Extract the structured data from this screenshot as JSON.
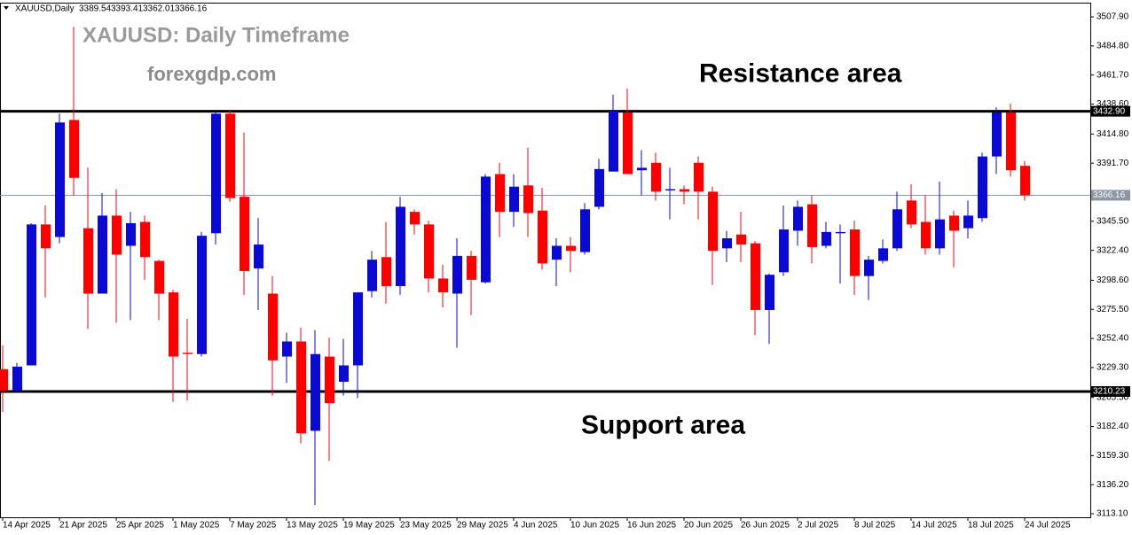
{
  "chart_data": {
    "type": "candlestick",
    "symbol": "XAUUSD,Daily",
    "title": "XAUUSD: Daily Timeframe",
    "watermark": "forexgdp.com",
    "annotations": [
      {
        "text": "Resistance area",
        "value": 3461.7
      },
      {
        "text": "Support area",
        "value": 3182.4
      }
    ],
    "categories": [
      "14 Apr 2025",
      null,
      null,
      null,
      "21 Apr 2025",
      null,
      null,
      null,
      "25 Apr 2025",
      null,
      null,
      null,
      "1 May 2025",
      null,
      null,
      null,
      "7 May 2025",
      null,
      null,
      null,
      "13 May 2025",
      null,
      null,
      null,
      "19 May 2025",
      null,
      null,
      null,
      "23 May 2025",
      null,
      null,
      null,
      "29 May 2025",
      null,
      null,
      null,
      "4 Jun 2025",
      null,
      null,
      null,
      "10 Jun 2025",
      null,
      null,
      null,
      "16 Jun 2025",
      null,
      null,
      null,
      "20 Jun 2025",
      null,
      null,
      null,
      "26 Jun 2025",
      null,
      null,
      null,
      "2 Jul 2025",
      null,
      null,
      null,
      "8 Jul 2025",
      null,
      null,
      null,
      "14 Jul 2025",
      null,
      null,
      null,
      "18 Jul 2025",
      null,
      null,
      null,
      "24 Jul 2025"
    ],
    "open": [
      3228,
      3211,
      3231,
      3343,
      3333,
      3426,
      3340,
      3288,
      3350,
      3326,
      3345,
      3314,
      3289,
      3241,
      3240,
      3336,
      3431,
      3365,
      3308,
      3288,
      3238,
      3250,
      3179,
      3238,
      3218,
      3231,
      3290,
      3317,
      3294,
      3353,
      3343,
      3300,
      3288,
      3318,
      3297,
      3383,
      3353,
      3374,
      3354,
      3315,
      3326,
      3321,
      3357,
      3385,
      3432,
      3386,
      3392,
      3370,
      3371,
      3392,
      3369,
      3324,
      3335,
      3328,
      3275,
      3305,
      3338,
      3359,
      3326,
      3336,
      3339,
      3302,
      3314,
      3324,
      3362,
      3345,
      3324,
      3350,
      3340,
      3348,
      3397,
      3432,
      3389.54
    ],
    "high": [
      3247,
      3233,
      3344,
      3358,
      3431,
      3500,
      3388,
      3368,
      3371,
      3353,
      3350,
      3315,
      3291,
      3268,
      3337,
      3433,
      3434,
      3416,
      3348,
      3302,
      3257,
      3261,
      3259,
      3253,
      3252,
      3289,
      3322,
      3345,
      3365,
      3355,
      3346,
      3311,
      3332,
      3322,
      3383,
      3392,
      3383,
      3404,
      3372,
      3332,
      3333,
      3360,
      3395,
      3446,
      3451,
      3402,
      3400,
      3388,
      3374,
      3397,
      3373,
      3338,
      3353,
      3330,
      3304,
      3358,
      3362,
      3366,
      3345,
      3343,
      3346,
      3318,
      3331,
      3369,
      3375,
      3366,
      3377,
      3354,
      3362,
      3400,
      3436,
      3439,
      3393.41
    ],
    "low": [
      3194,
      3211,
      3231,
      3285,
      3328,
      3366,
      3260,
      3288,
      3265,
      3267,
      3299,
      3267,
      3202,
      3203,
      3238,
      3327,
      3361,
      3287,
      3275,
      3207,
      3217,
      3169,
      3120,
      3155,
      3207,
      3205,
      3285,
      3280,
      3287,
      3335,
      3289,
      3277,
      3245,
      3271,
      3296,
      3333,
      3341,
      3333,
      3307,
      3294,
      3305,
      3319,
      3355,
      3385,
      3383,
      3366,
      3362,
      3347,
      3359,
      3347,
      3295,
      3313,
      3313,
      3255,
      3248,
      3302,
      3326,
      3312,
      3324,
      3296,
      3287,
      3283,
      3312,
      3322,
      3340,
      3319,
      3319,
      3309,
      3332,
      3345,
      3383,
      3381,
      3362.01
    ],
    "close": [
      3211,
      3230,
      3343,
      3324,
      3424,
      3380,
      3288,
      3350,
      3319,
      3344,
      3317,
      3288,
      3238,
      3240,
      3334,
      3431,
      3364,
      3306,
      3327,
      3235,
      3250,
      3177,
      3240,
      3201,
      3231,
      3289,
      3315,
      3294,
      3357,
      3343,
      3300,
      3289,
      3318,
      3299,
      3381,
      3353,
      3373,
      3352,
      3312,
      3326,
      3322,
      3355,
      3387,
      3433,
      3383,
      3388,
      3369,
      3371,
      3369,
      3369,
      3322,
      3332,
      3327,
      3275,
      3303,
      3339,
      3357,
      3325,
      3337,
      3337,
      3302,
      3315,
      3324,
      3355,
      3343,
      3324,
      3347,
      3338,
      3350,
      3397,
      3432,
      3386,
      3366.16
    ],
    "up_color": "#0a0ad2",
    "down_color": "#ff0000",
    "ylim": [
      3110.3,
      3518.5
    ],
    "yticks": [
      {
        "value": 3507.9,
        "label": "3507.90"
      },
      {
        "value": 3484.8,
        "label": "3484.80"
      },
      {
        "value": 3461.7,
        "label": "3461.70"
      },
      {
        "value": 3438.6,
        "label": "3438.60"
      },
      {
        "value": 3414.8,
        "label": "3414.80"
      },
      {
        "value": 3391.7,
        "label": "3391.70"
      },
      {
        "value": 3345.5,
        "label": "3345.50"
      },
      {
        "value": 3322.4,
        "label": "3322.40"
      },
      {
        "value": 3298.6,
        "label": "3298.60"
      },
      {
        "value": 3275.5,
        "label": "3275.50"
      },
      {
        "value": 3252.4,
        "label": "3252.40"
      },
      {
        "value": 3229.3,
        "label": "3229.30"
      },
      {
        "value": 3205.5,
        "label": "3205.50"
      },
      {
        "value": 3182.4,
        "label": "3182.40"
      },
      {
        "value": 3159.3,
        "label": "3159.30"
      },
      {
        "value": 3136.2,
        "label": "3136.20"
      },
      {
        "value": 3113.1,
        "label": "3113.10"
      }
    ],
    "levels": [
      {
        "value": 3432.9,
        "label": "3432.90",
        "color": "#000000"
      },
      {
        "value": 3210.23,
        "label": "3210.23",
        "color": "#000000"
      }
    ],
    "bid_line_color": "#8a96a4"
  }
}
